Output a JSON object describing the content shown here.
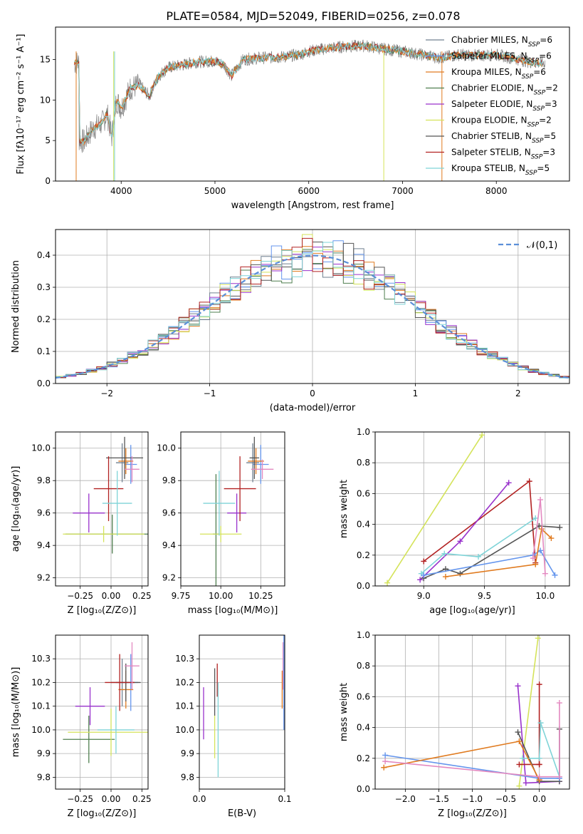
{
  "title": "PLATE=0584, MJD=52049, FIBERID=0256, z=0.078",
  "colors": {
    "Chabrier MILES": "#708090",
    "Salpeter MILES": "#6495ed",
    "Kroupa MILES": "#e07b20",
    "Chabrier ELODIE": "#4f7f4f",
    "Salpeter ELODIE": "#9932cc",
    "Kroupa ELODIE": "#d4e35a",
    "Chabrier STELIB": "#555555",
    "Salpeter STELIB": "#b22222",
    "Kroupa STELIB": "#7fd4d8",
    "pink": "#e389c0",
    "normal": "#5b8fd8",
    "grid": "#b0b0b0"
  },
  "legend_spectrum": [
    {
      "name": "Chabrier MILES",
      "label": "Chabrier MILES, N",
      "sub": "SSP",
      "suffix": "=6",
      "color": "#708090"
    },
    {
      "name": "Salpeter MILES",
      "label": "Salpeter MILES, N",
      "sub": "SSP",
      "suffix": "=6",
      "color": "#6495ed"
    },
    {
      "name": "Kroupa MILES",
      "label": "Kroupa MILES, N",
      "sub": "SSP",
      "suffix": "=6",
      "color": "#e07b20"
    },
    {
      "name": "Chabrier ELODIE",
      "label": "Chabrier ELODIE, N",
      "sub": "SSP",
      "suffix": "=2",
      "color": "#4f7f4f"
    },
    {
      "name": "Salpeter ELODIE",
      "label": "Salpeter ELODIE, N",
      "sub": "SSP",
      "suffix": "=3",
      "color": "#9932cc"
    },
    {
      "name": "Kroupa ELODIE",
      "label": "Kroupa ELODIE, N",
      "sub": "SSP",
      "suffix": "=2",
      "color": "#d4e35a"
    },
    {
      "name": "Chabrier STELIB",
      "label": "Chabrier STELIB, N",
      "sub": "SSP",
      "suffix": "=5",
      "color": "#555555"
    },
    {
      "name": "Salpeter STELIB",
      "label": "Salpeter STELIB, N",
      "sub": "SSP",
      "suffix": "=3",
      "color": "#b22222"
    },
    {
      "name": "Kroupa STELIB",
      "label": "Kroupa STELIB, N",
      "sub": "SSP",
      "suffix": "=5",
      "color": "#7fd4d8"
    }
  ],
  "chart_data": [
    {
      "id": "spectrum",
      "type": "line",
      "xlabel": "wavelength [Angstrom, rest frame]",
      "ylabel": "Flux [fλ10⁻¹⁷ erg cm⁻² s⁻¹ A⁻¹]",
      "xlim": [
        3300,
        8780
      ],
      "ylim": [
        0,
        19
      ],
      "xticks": [
        4000,
        5000,
        6000,
        7000,
        8000
      ],
      "yticks": [
        0,
        5,
        10,
        15
      ],
      "anchors": [
        [
          3550,
          5.2
        ],
        [
          3600,
          4.8
        ],
        [
          3700,
          6.5
        ],
        [
          3800,
          7.2
        ],
        [
          3850,
          8.3
        ],
        [
          3900,
          5.5
        ],
        [
          3950,
          10.0
        ],
        [
          4000,
          9.0
        ],
        [
          4100,
          11.5
        ],
        [
          4200,
          11.8
        ],
        [
          4300,
          10.5
        ],
        [
          4400,
          13.0
        ],
        [
          4500,
          14.0
        ],
        [
          4600,
          14.2
        ],
        [
          4800,
          14.7
        ],
        [
          5000,
          14.8
        ],
        [
          5100,
          14.3
        ],
        [
          5175,
          13.0
        ],
        [
          5300,
          15.0
        ],
        [
          5500,
          15.2
        ],
        [
          5700,
          15.3
        ],
        [
          5900,
          15.6
        ],
        [
          6000,
          16.0
        ],
        [
          6200,
          16.4
        ],
        [
          6400,
          16.6
        ],
        [
          6600,
          16.7
        ],
        [
          6800,
          16.3
        ],
        [
          7000,
          16.0
        ],
        [
          7200,
          15.6
        ],
        [
          7400,
          15.2
        ],
        [
          7600,
          15.6
        ],
        [
          7800,
          15.5
        ],
        [
          8000,
          15.6
        ],
        [
          8200,
          15.1
        ],
        [
          8400,
          14.6
        ]
      ],
      "model_range": [
        3500,
        8500
      ],
      "data_range": [
        3500,
        8520
      ],
      "drop_lines": [
        {
          "x": 3930,
          "color": "#7fd4d8"
        },
        {
          "x": 3920,
          "color": "#d4e35a"
        },
        {
          "x": 6800,
          "color": "#d4e35a"
        },
        {
          "x": 7420,
          "color": "#e07b20"
        },
        {
          "x": 3520,
          "color": "#e07b20"
        }
      ]
    },
    {
      "id": "residuals",
      "type": "histogram",
      "xlabel": "(data-model)/error",
      "ylabel": "Normed distribution",
      "xlim": [
        -2.5,
        2.5
      ],
      "ylim": [
        0,
        0.48
      ],
      "xticks": [
        -2,
        -1,
        0,
        1,
        2
      ],
      "yticks": [
        0.0,
        0.1,
        0.2,
        0.3,
        0.4
      ],
      "bin_width": 0.1,
      "legend": "𝒩(0,1)",
      "curve": "normal(0,1)",
      "series": [
        {
          "name": "Chabrier MILES",
          "values": [
            0.02,
            0.02,
            0.03,
            0.03,
            0.04,
            0.05,
            0.06,
            0.07,
            0.08,
            0.1,
            0.12,
            0.14,
            0.15,
            0.18,
            0.2,
            0.21,
            0.24,
            0.26,
            0.28,
            0.29,
            0.3,
            0.32,
            0.33,
            0.34,
            0.36,
            0.37,
            0.38,
            0.38,
            0.39,
            0.38,
            0.39,
            0.4,
            0.39,
            0.41,
            0.39,
            0.41,
            0.4,
            0.42,
            0.41,
            0.39,
            0.37,
            0.35,
            0.36,
            0.34,
            0.33,
            0.31,
            0.29,
            0.28,
            0.26,
            0.24,
            0.23,
            0.21,
            0.19,
            0.17,
            0.15,
            0.14,
            0.12,
            0.11,
            0.1,
            0.09,
            0.08,
            0.07,
            0.06,
            0.06,
            0.05,
            0.04,
            0.04,
            0.03,
            0.03,
            0.02
          ],
          "start": -3.3
        },
        {
          "name": "Salpeter MILES",
          "values": [
            0.02,
            0.02,
            0.03,
            0.03,
            0.04,
            0.04,
            0.05,
            0.06,
            0.07,
            0.09,
            0.11,
            0.13,
            0.14,
            0.16,
            0.19,
            0.2,
            0.23,
            0.25,
            0.27,
            0.3,
            0.31,
            0.33,
            0.34,
            0.35,
            0.37,
            0.38,
            0.39,
            0.4,
            0.39,
            0.41,
            0.4,
            0.42,
            0.43,
            0.45,
            0.44,
            0.42,
            0.41,
            0.4,
            0.4,
            0.38,
            0.36,
            0.36,
            0.34,
            0.32,
            0.3,
            0.29,
            0.27,
            0.25,
            0.23,
            0.21,
            0.2,
            0.18,
            0.16,
            0.15,
            0.13,
            0.12,
            0.11,
            0.09,
            0.08,
            0.07,
            0.06,
            0.06,
            0.05,
            0.04,
            0.04,
            0.03,
            0.03,
            0.02,
            0.02,
            0.02
          ],
          "start": -3.3
        }
      ]
    },
    {
      "id": "age_vs_Z",
      "type": "errorbar",
      "xlabel": "Z [log₁₀(Z/Z⊙)]",
      "ylabel": "age  [log₁₀(age/yr)]",
      "xlim": [
        -0.45,
        0.3
      ],
      "ylim": [
        9.15,
        10.1
      ],
      "xticks": [
        -0.25,
        0.0,
        0.25
      ],
      "yticks": [
        9.2,
        9.4,
        9.6,
        9.8,
        10.0
      ],
      "points": [
        {
          "series": "Chabrier MILES",
          "x": 0.09,
          "y": 9.91,
          "xerr": 0.05,
          "yerr": 0.12
        },
        {
          "series": "Salpeter MILES",
          "x": 0.16,
          "y": 9.9,
          "xerr": 0.05,
          "yerr": 0.12
        },
        {
          "series": "Kroupa MILES",
          "x": 0.12,
          "y": 9.92,
          "xerr": 0.06,
          "yerr": 0.08
        },
        {
          "series": "Chabrier ELODIE",
          "x": 0.01,
          "y": 9.47,
          "xerr": 0.38,
          "yerr": 0.12
        },
        {
          "series": "Salpeter ELODIE",
          "x": -0.18,
          "y": 9.6,
          "xerr": 0.13,
          "yerr": 0.12
        },
        {
          "series": "Kroupa ELODIE",
          "x": -0.06,
          "y": 9.47,
          "xerr": 0.33,
          "yerr": 0.05
        },
        {
          "series": "Chabrier STELIB",
          "x": 0.11,
          "y": 9.94,
          "xerr": 0.15,
          "yerr": 0.13
        },
        {
          "series": "Salpeter STELIB",
          "x": -0.02,
          "y": 9.75,
          "xerr": 0.12,
          "yerr": 0.2
        },
        {
          "series": "Kroupa STELIB",
          "x": 0.05,
          "y": 9.66,
          "xerr": 0.12,
          "yerr": 0.2
        },
        {
          "series": "pink",
          "x": 0.17,
          "y": 9.87,
          "xerr": 0.06,
          "yerr": 0.08
        }
      ]
    },
    {
      "id": "age_vs_mass",
      "type": "errorbar",
      "xlabel": "mass [log₁₀(M/M⊙)]",
      "ylabel": "",
      "xlim": [
        9.75,
        10.4
      ],
      "ylim": [
        9.15,
        10.1
      ],
      "xticks": [
        9.75,
        10.0,
        10.25
      ],
      "yticks": [
        9.2,
        9.4,
        9.6,
        9.8,
        10.0
      ],
      "points": [
        {
          "series": "Chabrier MILES",
          "x": 10.2,
          "y": 9.91,
          "xerr": 0.04,
          "yerr": 0.12
        },
        {
          "series": "Salpeter MILES",
          "x": 10.25,
          "y": 9.9,
          "xerr": 0.05,
          "yerr": 0.12
        },
        {
          "series": "Kroupa MILES",
          "x": 10.22,
          "y": 9.92,
          "xerr": 0.05,
          "yerr": 0.08
        },
        {
          "series": "Chabrier ELODIE",
          "x": 9.97,
          "y": 9.47,
          "xerr": 0.02,
          "yerr": 0.37
        },
        {
          "series": "Salpeter ELODIE",
          "x": 10.1,
          "y": 9.6,
          "xerr": 0.06,
          "yerr": 0.12
        },
        {
          "series": "Kroupa ELODIE",
          "x": 10.0,
          "y": 9.47,
          "xerr": 0.13,
          "yerr": 0.05
        },
        {
          "series": "Chabrier STELIB",
          "x": 10.21,
          "y": 9.94,
          "xerr": 0.03,
          "yerr": 0.13
        },
        {
          "series": "Salpeter STELIB",
          "x": 10.12,
          "y": 9.75,
          "xerr": 0.1,
          "yerr": 0.2
        },
        {
          "series": "Kroupa STELIB",
          "x": 9.99,
          "y": 9.66,
          "xerr": 0.1,
          "yerr": 0.2
        },
        {
          "series": "pink",
          "x": 10.26,
          "y": 9.87,
          "xerr": 0.07,
          "yerr": 0.06
        }
      ]
    },
    {
      "id": "weight_vs_age",
      "type": "line",
      "xlabel": "age  [log₁₀(age/yr)]",
      "ylabel": "mass weight",
      "xlim": [
        8.6,
        10.2
      ],
      "ylim": [
        0,
        1
      ],
      "xticks": [
        9.0,
        9.5,
        10.0
      ],
      "yticks": [
        0.0,
        0.2,
        0.4,
        0.6,
        0.8,
        1.0
      ],
      "series": [
        {
          "name": "Kroupa ELODIE",
          "x": [
            8.7,
            9.48
          ],
          "y": [
            0.02,
            0.98
          ]
        },
        {
          "name": "Salpeter STELIB",
          "x": [
            9.0,
            9.87,
            9.92
          ],
          "y": [
            0.16,
            0.68,
            0.15
          ]
        },
        {
          "name": "Salpeter ELODIE",
          "x": [
            8.97,
            9.3,
            9.7
          ],
          "y": [
            0.04,
            0.29,
            0.67
          ]
        },
        {
          "name": "Kroupa STELIB",
          "x": [
            8.98,
            9.17,
            9.45,
            9.92
          ],
          "y": [
            0.08,
            0.21,
            0.19,
            0.44
          ]
        },
        {
          "name": "Chabrier STELIB",
          "x": [
            9.0,
            9.18,
            9.3,
            9.95,
            10.12
          ],
          "y": [
            0.05,
            0.11,
            0.08,
            0.39,
            0.38
          ]
        },
        {
          "name": "Salpeter MILES",
          "x": [
            9.0,
            9.9,
            9.96,
            10.08
          ],
          "y": [
            0.07,
            0.2,
            0.23,
            0.07
          ]
        },
        {
          "name": "Kroupa MILES",
          "x": [
            9.18,
            9.92,
            9.97,
            10.05
          ],
          "y": [
            0.06,
            0.14,
            0.37,
            0.31
          ]
        },
        {
          "name": "pink",
          "x": [
            9.9,
            9.96,
            10.0
          ],
          "y": [
            0.18,
            0.56,
            0.08
          ]
        }
      ]
    },
    {
      "id": "mass_vs_Z",
      "type": "errorbar",
      "xlabel": "Z [log₁₀(Z/Z⊙)]",
      "ylabel": "mass [log₁₀(M/M⊙)]",
      "xlim": [
        -0.45,
        0.3
      ],
      "ylim": [
        9.75,
        10.4
      ],
      "xticks": [
        -0.25,
        0.0,
        0.25
      ],
      "yticks": [
        9.8,
        9.9,
        10.0,
        10.1,
        10.2,
        10.3
      ],
      "points": [
        {
          "series": "Chabrier MILES",
          "x": 0.09,
          "y": 10.2,
          "xerr": 0.05,
          "yerr": 0.1
        },
        {
          "series": "Salpeter MILES",
          "x": 0.16,
          "y": 10.2,
          "xerr": 0.06,
          "yerr": 0.12
        },
        {
          "series": "Kroupa MILES",
          "x": 0.12,
          "y": 10.17,
          "xerr": 0.06,
          "yerr": 0.08
        },
        {
          "series": "Chabrier ELODIE",
          "x": -0.18,
          "y": 9.96,
          "xerr": 0.21,
          "yerr": 0.1
        },
        {
          "series": "Salpeter ELODIE",
          "x": -0.17,
          "y": 10.1,
          "xerr": 0.12,
          "yerr": 0.08
        },
        {
          "series": "Kroupa ELODIE",
          "x": 0.0,
          "y": 9.99,
          "xerr": 0.35,
          "yerr": 0.1
        },
        {
          "series": "Chabrier STELIB",
          "x": 0.12,
          "y": 10.2,
          "xerr": 0.12,
          "yerr": 0.08
        },
        {
          "series": "Salpeter STELIB",
          "x": 0.07,
          "y": 10.2,
          "xerr": 0.12,
          "yerr": 0.12
        },
        {
          "series": "Kroupa STELIB",
          "x": 0.04,
          "y": 10.0,
          "xerr": 0.15,
          "yerr": 0.1
        },
        {
          "series": "pink",
          "x": 0.17,
          "y": 10.27,
          "xerr": 0.06,
          "yerr": 0.1
        }
      ]
    },
    {
      "id": "mass_vs_ebv",
      "type": "errorbar",
      "xlabel": "E(B-V)",
      "ylabel": "",
      "xlim": [
        0,
        0.1
      ],
      "ylim": [
        9.75,
        10.4
      ],
      "xticks": [
        0.0,
        0.1
      ],
      "yticks": [
        9.8,
        9.9,
        10.0,
        10.1,
        10.2,
        10.3
      ],
      "points": [
        {
          "series": "Salpeter ELODIE",
          "x": 0.005,
          "y": 10.07,
          "yerr": 0.11
        },
        {
          "series": "Chabrier STELIB",
          "x": 0.018,
          "y": 10.16,
          "yerr": 0.1
        },
        {
          "series": "Kroupa ELODIE",
          "x": 0.018,
          "y": 9.97,
          "yerr": 0.09
        },
        {
          "series": "Salpeter STELIB",
          "x": 0.021,
          "y": 10.21,
          "yerr": 0.07
        },
        {
          "series": "Kroupa STELIB",
          "x": 0.022,
          "y": 10.0,
          "yerr": 0.2
        },
        {
          "series": "Kroupa MILES",
          "x": 0.097,
          "y": 10.17,
          "yerr": 0.08
        },
        {
          "series": "pink",
          "x": 0.098,
          "y": 10.27,
          "yerr": 0.1
        },
        {
          "series": "Salpeter MILES",
          "x": 0.099,
          "y": 10.2,
          "yerr": 0.2
        }
      ]
    },
    {
      "id": "weight_vs_Z",
      "type": "line",
      "xlabel": "Z [log₁₀(Z/Z⊙)]",
      "ylabel": "mass weight",
      "xlim": [
        -2.45,
        0.45
      ],
      "ylim": [
        0,
        1
      ],
      "xticks": [
        -2.0,
        -1.5,
        -1.0,
        -0.5,
        0.0
      ],
      "yticks": [
        0.0,
        0.2,
        0.4,
        0.6,
        0.8,
        1.0
      ],
      "series": [
        {
          "name": "Kroupa ELODIE",
          "x": [
            -0.3,
            -0.02
          ],
          "y": [
            0.02,
            0.98
          ]
        },
        {
          "name": "Salpeter ELODIE",
          "x": [
            -0.32,
            -0.2,
            0.3
          ],
          "y": [
            0.67,
            0.04,
            0.05
          ]
        },
        {
          "name": "Salpeter STELIB",
          "x": [
            0.0,
            0.0,
            -0.3,
            0.0
          ],
          "y": [
            0.68,
            0.16,
            0.16,
            0.16
          ]
        },
        {
          "name": "Chabrier STELIB",
          "x": [
            -0.32,
            0.0,
            0.3,
            0.3
          ],
          "y": [
            0.37,
            0.05,
            0.05,
            0.39
          ]
        },
        {
          "name": "Kroupa STELIB",
          "x": [
            -0.25,
            0.0,
            0.02,
            0.3
          ],
          "y": [
            0.2,
            0.2,
            0.43,
            0.08
          ]
        },
        {
          "name": "Salpeter MILES",
          "x": [
            -2.3,
            0.0,
            0.3
          ],
          "y": [
            0.22,
            0.07,
            0.07
          ]
        },
        {
          "name": "Kroupa MILES",
          "x": [
            -2.32,
            -0.3,
            0.0,
            0.0
          ],
          "y": [
            0.14,
            0.31,
            0.06,
            0.06
          ]
        },
        {
          "name": "pink",
          "x": [
            -2.3,
            0.0,
            0.3,
            0.3
          ],
          "y": [
            0.18,
            0.08,
            0.08,
            0.56
          ]
        }
      ]
    }
  ]
}
